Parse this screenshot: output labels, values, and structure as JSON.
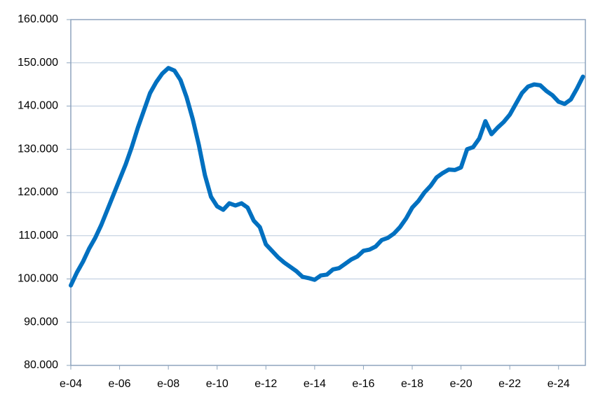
{
  "chart_data": {
    "type": "line",
    "categories": [
      "e-04",
      null,
      null,
      null,
      null,
      null,
      null,
      null,
      "e-06",
      null,
      null,
      null,
      null,
      null,
      null,
      null,
      "e-08",
      null,
      null,
      null,
      null,
      null,
      null,
      null,
      "e-10",
      null,
      null,
      null,
      null,
      null,
      null,
      null,
      "e-12",
      null,
      null,
      null,
      null,
      null,
      null,
      null,
      "e-14",
      null,
      null,
      null,
      null,
      null,
      null,
      null,
      "e-16",
      null,
      null,
      null,
      null,
      null,
      null,
      null,
      "e-18",
      null,
      null,
      null,
      null,
      null,
      null,
      null,
      "e-20",
      null,
      null,
      null,
      null,
      null,
      null,
      null,
      "e-22",
      null,
      null,
      null,
      null,
      null,
      null,
      null,
      "e-24",
      null,
      null,
      null,
      null
    ],
    "series": [
      {
        "color": "#0070c0",
        "values": [
          98500,
          101500,
          104000,
          107000,
          109500,
          112500,
          116000,
          119500,
          123000,
          126500,
          130500,
          135000,
          139000,
          143000,
          145500,
          147500,
          148800,
          148200,
          146000,
          142000,
          137000,
          131000,
          124000,
          119000,
          116800,
          116000,
          117500,
          117000,
          117500,
          116500,
          113500,
          112000,
          108000,
          106500,
          105000,
          103800,
          102800,
          101800,
          100500,
          100200,
          99800,
          100800,
          101000,
          102200,
          102500,
          103500,
          104500,
          105200,
          106500,
          106800,
          107500,
          109000,
          109500,
          110500,
          112000,
          114000,
          116500,
          118000,
          120000,
          121500,
          123500,
          124500,
          125300,
          125200,
          125800,
          130000,
          130500,
          132500,
          136500,
          133500,
          135000,
          136300,
          138000,
          140500,
          143000,
          144500,
          145000,
          144800,
          143500,
          142500,
          141000,
          140500,
          141500,
          144000,
          146800
        ]
      }
    ],
    "ylim": [
      80000,
      160000
    ],
    "yticks": [
      {
        "value": 80000,
        "label": "80.000"
      },
      {
        "value": 90000,
        "label": "90.000"
      },
      {
        "value": 100000,
        "label": "100.000"
      },
      {
        "value": 110000,
        "label": "110.000"
      },
      {
        "value": 120000,
        "label": "120.000"
      },
      {
        "value": 130000,
        "label": "130.000"
      },
      {
        "value": 140000,
        "label": "140.000"
      },
      {
        "value": 150000,
        "label": "150.000"
      },
      {
        "value": 160000,
        "label": "160.000"
      }
    ],
    "grid": true
  }
}
